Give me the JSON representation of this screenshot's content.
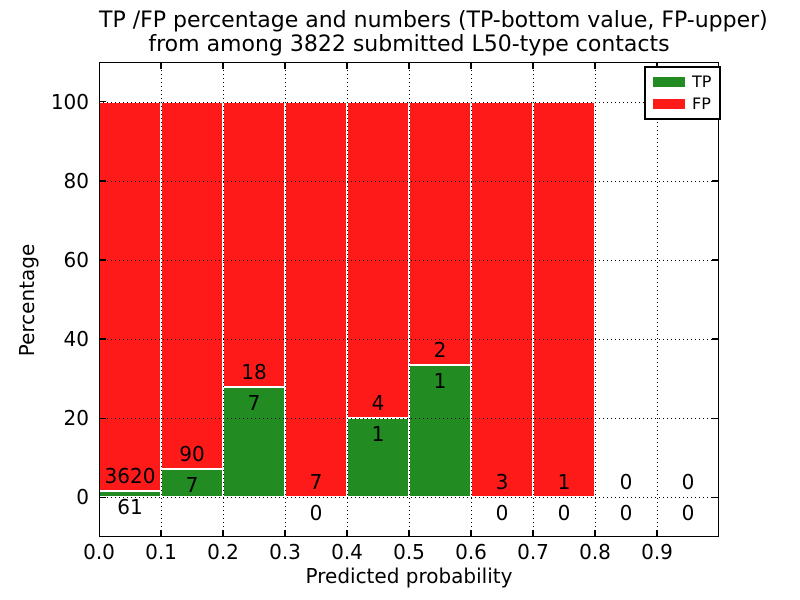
{
  "chart_data": {
    "type": "bar",
    "subtype": "stacked-percentage-histogram",
    "title": "TP /FP percentage and numbers (TP-bottom value, FP-upper)",
    "subtitle": "from among 3822 submitted L50-type contacts",
    "xlabel": "Predicted probability",
    "ylabel": "Percentage",
    "xlim": [
      0.0,
      1.0
    ],
    "ylim": [
      -10,
      110
    ],
    "x_tick_labels": [
      "0.0",
      "0.1",
      "0.2",
      "0.3",
      "0.4",
      "0.5",
      "0.6",
      "0.7",
      "0.8",
      "0.9"
    ],
    "y_tick_labels": [
      "0",
      "20",
      "40",
      "60",
      "80",
      "100"
    ],
    "grid": "dotted-black-both-axes",
    "legend_position": "upper-right",
    "total_contacts": 3822,
    "legend": [
      {
        "label": "TP",
        "color": "#228b22"
      },
      {
        "label": "FP",
        "color": "#ff1a1a"
      }
    ],
    "colors": {
      "tp": "#228b22",
      "fp": "#ff1a1a",
      "bar_edge": "#ffffff",
      "grid": "#000000",
      "text": "#000000",
      "background": "#ffffff"
    },
    "bins": [
      {
        "x0": 0.0,
        "x1": 0.1,
        "tp": 61,
        "fp": 3620
      },
      {
        "x0": 0.1,
        "x1": 0.2,
        "tp": 7,
        "fp": 90
      },
      {
        "x0": 0.2,
        "x1": 0.3,
        "tp": 7,
        "fp": 18
      },
      {
        "x0": 0.3,
        "x1": 0.4,
        "tp": 0,
        "fp": 7
      },
      {
        "x0": 0.4,
        "x1": 0.5,
        "tp": 1,
        "fp": 4
      },
      {
        "x0": 0.5,
        "x1": 0.6,
        "tp": 1,
        "fp": 2
      },
      {
        "x0": 0.6,
        "x1": 0.7,
        "tp": 0,
        "fp": 3
      },
      {
        "x0": 0.7,
        "x1": 0.8,
        "tp": 0,
        "fp": 1
      },
      {
        "x0": 0.8,
        "x1": 0.9,
        "tp": 0,
        "fp": 0
      },
      {
        "x0": 0.9,
        "x1": 1.0,
        "tp": 0,
        "fp": 0
      }
    ]
  }
}
